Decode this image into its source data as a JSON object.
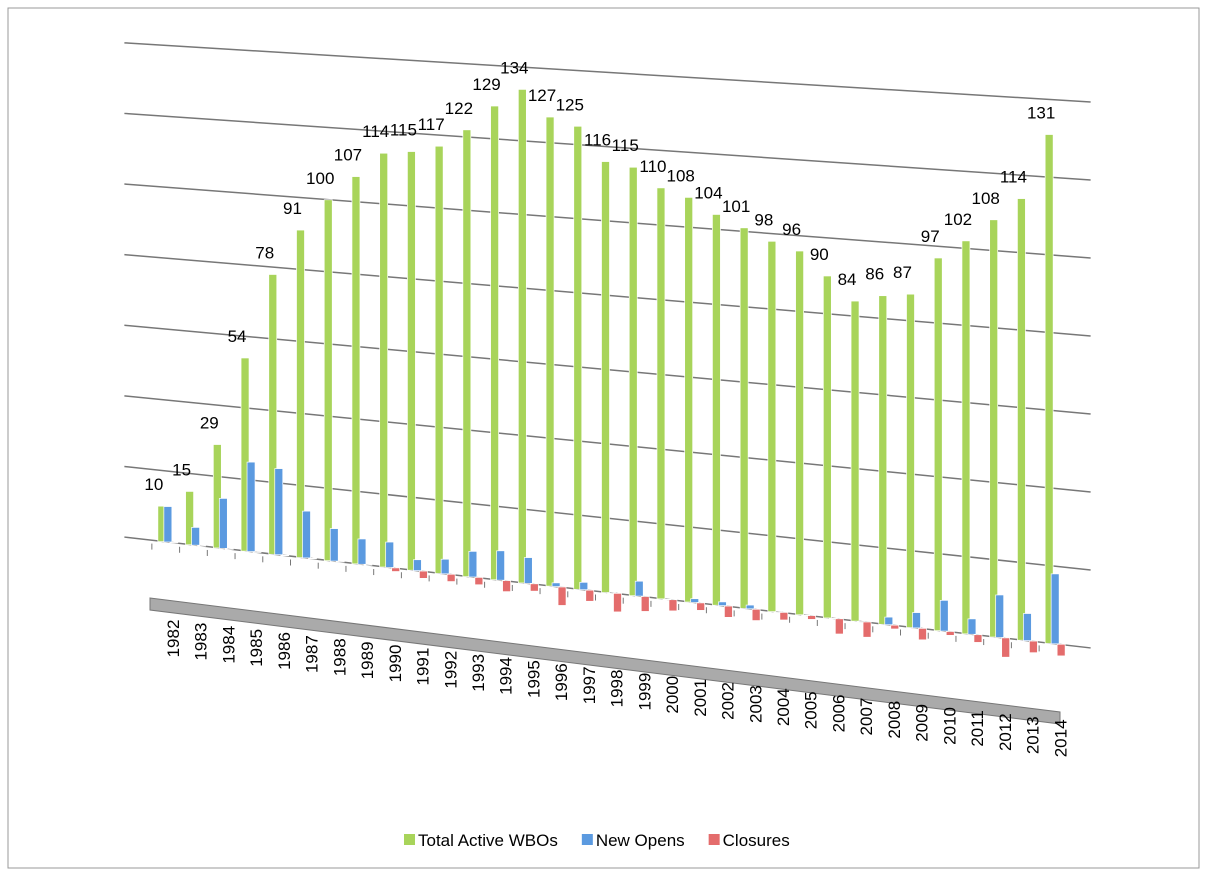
{
  "chart_data": {
    "type": "bar3d",
    "categories": [
      "1982",
      "1983",
      "1984",
      "1985",
      "1986",
      "1987",
      "1988",
      "1989",
      "1990",
      "1991",
      "1992",
      "1993",
      "1994",
      "1995",
      "1996",
      "1997",
      "1998",
      "1999",
      "2000",
      "2001",
      "2002",
      "2003",
      "2004",
      "2005",
      "2006",
      "2007",
      "2008",
      "2009",
      "2010",
      "2011",
      "2012",
      "2013",
      "2014"
    ],
    "series": [
      {
        "name": "Total Active WBOs",
        "color": "#a8d45a",
        "values": [
          10,
          15,
          29,
          54,
          78,
          91,
          100,
          107,
          114,
          115,
          117,
          122,
          129,
          134,
          127,
          125,
          116,
          115,
          110,
          108,
          104,
          101,
          98,
          96,
          90,
          84,
          86,
          87,
          97,
          102,
          108,
          114,
          131
        ],
        "labels": true
      },
      {
        "name": "New Opens",
        "color": "#5b9ae0",
        "values": [
          10,
          5,
          14,
          25,
          24,
          13,
          9,
          7,
          7,
          3,
          4,
          7,
          8,
          7,
          1,
          2,
          0,
          4,
          0,
          1,
          1,
          1,
          0,
          0,
          0,
          0,
          2,
          4,
          8,
          4,
          11,
          7,
          18
        ]
      },
      {
        "name": "Closures",
        "color": "#e46c6c",
        "values": [
          0,
          0,
          0,
          0,
          0,
          0,
          0,
          0,
          -1,
          -2,
          -2,
          -2,
          -3,
          -2,
          -5,
          -3,
          -5,
          -4,
          -3,
          -2,
          -3,
          -3,
          -2,
          -1,
          -4,
          -4,
          -1,
          -3,
          -1,
          -2,
          -5,
          -3,
          -3
        ]
      }
    ],
    "ylim": [
      -10,
      140
    ],
    "yticks": [
      0,
      20,
      40,
      60,
      80,
      100,
      120,
      140
    ],
    "grid": true,
    "legend": "bottom"
  }
}
